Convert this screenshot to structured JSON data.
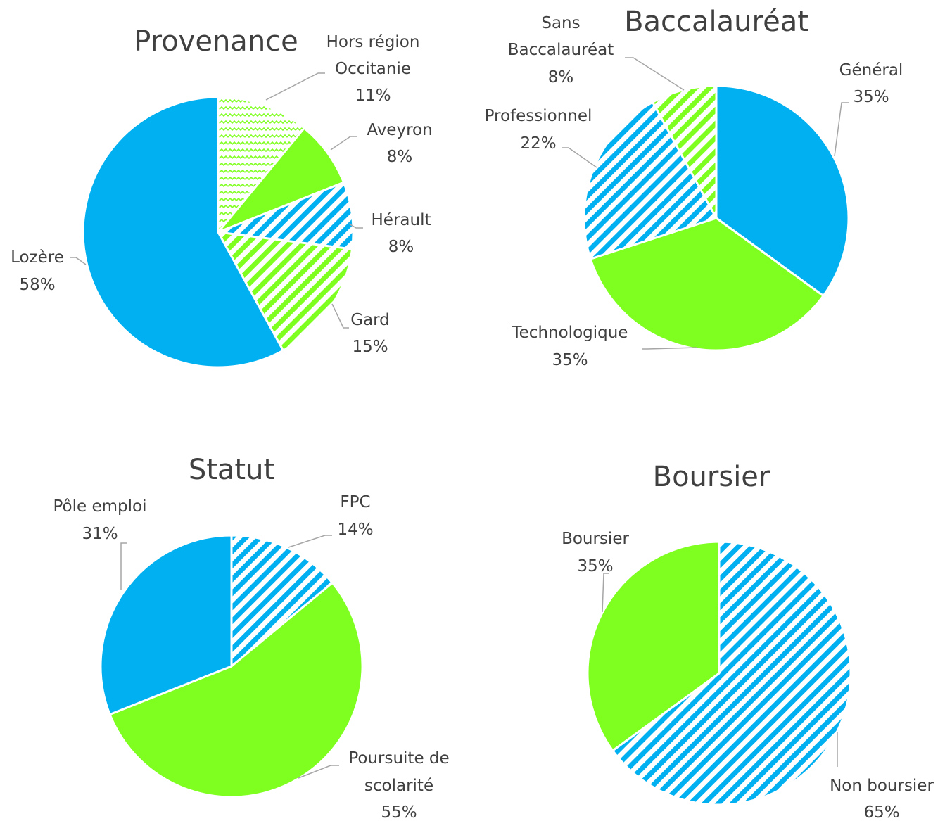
{
  "colors": {
    "blue": "#00B0F0",
    "green": "#7FFF1F",
    "leader": "#A6A6A6",
    "text": "#404040"
  },
  "chart_data": [
    {
      "type": "pie",
      "title": "Provenance",
      "slices": [
        {
          "name": "Hors région Occitanie",
          "value": 11,
          "percent_label": "11%",
          "fill": "green-wave"
        },
        {
          "name": "Aveyron",
          "value": 8,
          "percent_label": "8%",
          "fill": "green-solid"
        },
        {
          "name": "Hérault",
          "value": 8,
          "percent_label": "8%",
          "fill": "blue-hatch"
        },
        {
          "name": "Gard",
          "value": 15,
          "percent_label": "15%",
          "fill": "green-hatch"
        },
        {
          "name": "Lozère",
          "value": 58,
          "percent_label": "58%",
          "fill": "blue-solid"
        }
      ]
    },
    {
      "type": "pie",
      "title": "Baccalauréat",
      "slices": [
        {
          "name": "Général",
          "value": 35,
          "percent_label": "35%",
          "fill": "blue-solid"
        },
        {
          "name": "Technologique",
          "value": 35,
          "percent_label": "35%",
          "fill": "green-solid"
        },
        {
          "name": "Professionnel",
          "value": 22,
          "percent_label": "22%",
          "fill": "blue-hatch"
        },
        {
          "name": "Sans Baccalauréat",
          "value": 8,
          "percent_label": "8%",
          "fill": "green-hatch"
        }
      ]
    },
    {
      "type": "pie",
      "title": "Statut",
      "slices": [
        {
          "name": "FPC",
          "value": 14,
          "percent_label": "14%",
          "fill": "blue-hatch"
        },
        {
          "name": "Poursuite de scolarité",
          "value": 55,
          "percent_label": "55%",
          "fill": "green-solid"
        },
        {
          "name": "Pôle emploi",
          "value": 31,
          "percent_label": "31%",
          "fill": "blue-solid"
        }
      ]
    },
    {
      "type": "pie",
      "title": "Boursier",
      "slices": [
        {
          "name": "Non boursier",
          "value": 65,
          "percent_label": "65%",
          "fill": "blue-hatch"
        },
        {
          "name": "Boursier",
          "value": 35,
          "percent_label": "35%",
          "fill": "green-solid"
        }
      ]
    }
  ]
}
